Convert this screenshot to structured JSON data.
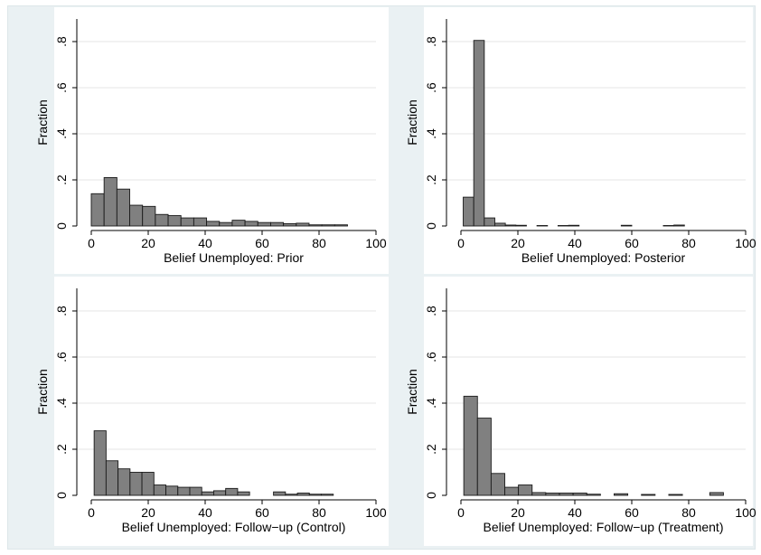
{
  "chart_data": [
    {
      "type": "bar",
      "subplot": "top-left",
      "xlabel": "Belief Unemployed: Prior",
      "ylabel": "Fraction",
      "xlim": [
        0,
        100
      ],
      "ylim": [
        0,
        0.8
      ],
      "xticks": [
        0,
        20,
        40,
        60,
        80,
        100
      ],
      "xtick_labels": [
        "0",
        "20",
        "40",
        "60",
        "80",
        "100"
      ],
      "yticks": [
        0,
        0.2,
        0.4,
        0.6,
        0.8
      ],
      "ytick_labels": [
        "0",
        ".2",
        ".4",
        ".6",
        ".8"
      ],
      "bin_width": 4.5,
      "bin_start": 0,
      "values": [
        0.14,
        0.21,
        0.16,
        0.09,
        0.085,
        0.05,
        0.045,
        0.035,
        0.035,
        0.02,
        0.015,
        0.025,
        0.02,
        0.015,
        0.015,
        0.01,
        0.012,
        0.005,
        0.005,
        0.005
      ],
      "grid": true,
      "bar_color": "#808080"
    },
    {
      "type": "bar",
      "subplot": "top-right",
      "xlabel": "Belief Unemployed: Posterior",
      "ylabel": "Fraction",
      "xlim": [
        0,
        100
      ],
      "ylim": [
        0,
        0.8
      ],
      "xticks": [
        0,
        20,
        40,
        60,
        80,
        100
      ],
      "xtick_labels": [
        "0",
        "20",
        "40",
        "60",
        "80",
        "100"
      ],
      "yticks": [
        0,
        0.2,
        0.4,
        0.6,
        0.8
      ],
      "ytick_labels": [
        "0",
        ".2",
        ".4",
        ".6",
        ".8"
      ],
      "bin_width": 3.7,
      "bin_start": 0.8,
      "values": [
        0.125,
        0.805,
        0.035,
        0.012,
        0.004,
        0.003,
        0,
        0.002,
        0,
        0.002,
        0.003,
        0,
        0,
        0,
        0,
        0.003,
        0,
        0,
        0,
        0.002,
        0.004,
        0,
        0,
        0,
        0,
        0,
        0
      ],
      "grid": true,
      "bar_color": "#808080"
    },
    {
      "type": "bar",
      "subplot": "bottom-left",
      "xlabel": "Belief Unemployed: Follow−up (Control)",
      "ylabel": "Fraction",
      "xlim": [
        0,
        100
      ],
      "ylim": [
        0,
        0.8
      ],
      "xticks": [
        0,
        20,
        40,
        60,
        80,
        100
      ],
      "xtick_labels": [
        "0",
        "20",
        "40",
        "60",
        "80",
        "100"
      ],
      "yticks": [
        0,
        0.2,
        0.4,
        0.6,
        0.8
      ],
      "ytick_labels": [
        "0",
        ".2",
        ".4",
        ".6",
        ".8"
      ],
      "bin_width": 4.2,
      "bin_start": 1,
      "values": [
        0.28,
        0.15,
        0.115,
        0.1,
        0.1,
        0.045,
        0.04,
        0.035,
        0.035,
        0.015,
        0.02,
        0.03,
        0.015,
        0,
        0,
        0.015,
        0.005,
        0.01,
        0.005,
        0.005
      ],
      "grid": true,
      "bar_color": "#808080"
    },
    {
      "type": "bar",
      "subplot": "bottom-right",
      "xlabel": "Belief Unemployed: Follow−up (Treatment)",
      "ylabel": "Fraction",
      "xlim": [
        0,
        100
      ],
      "ylim": [
        0,
        0.8
      ],
      "xticks": [
        0,
        20,
        40,
        60,
        80,
        100
      ],
      "xtick_labels": [
        "0",
        "20",
        "40",
        "60",
        "80",
        "100"
      ],
      "yticks": [
        0,
        0.2,
        0.4,
        0.6,
        0.8
      ],
      "ytick_labels": [
        "0",
        ".2",
        ".4",
        ".6",
        ".8"
      ],
      "bin_width": 4.8,
      "bin_start": 1,
      "values": [
        0.43,
        0.335,
        0.095,
        0.035,
        0.045,
        0.012,
        0.01,
        0.01,
        0.01,
        0.005,
        0,
        0.007,
        0,
        0.004,
        0,
        0.004,
        0,
        0,
        0.012
      ],
      "grid": true,
      "bar_color": "#808080"
    }
  ]
}
